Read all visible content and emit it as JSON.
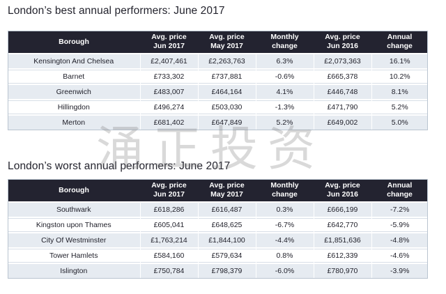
{
  "tables": [
    {
      "title": "London’s best annual performers: June 2017",
      "headers": {
        "borough": "Borough",
        "avg_jun2017": [
          "Avg. price",
          "Jun 2017"
        ],
        "avg_may2017": [
          "Avg. price",
          "May 2017"
        ],
        "monthly": [
          "Monthly",
          "change"
        ],
        "avg_jun2016": [
          "Avg. price",
          "Jun 2016"
        ],
        "annual": [
          "Annual",
          "change"
        ]
      },
      "rows": [
        [
          "Kensington And Chelsea",
          "£2,407,461",
          "£2,263,763",
          "6.3%",
          "£2,073,363",
          "16.1%"
        ],
        [
          "Barnet",
          "£733,302",
          "£737,881",
          "-0.6%",
          "£665,378",
          "10.2%"
        ],
        [
          "Greenwich",
          "£483,007",
          "£464,164",
          "4.1%",
          "£446,748",
          "8.1%"
        ],
        [
          "Hillingdon",
          "£496,274",
          "£503,030",
          "-1.3%",
          "£471,790",
          "5.2%"
        ],
        [
          "Merton",
          "£681,402",
          "£647,849",
          "5.2%",
          "£649,002",
          "5.0%"
        ]
      ]
    },
    {
      "title": "London’s worst annual performers: June 2017",
      "headers": {
        "borough": "Borough",
        "avg_jun2017": [
          "Avg. price",
          "Jun 2017"
        ],
        "avg_may2017": [
          "Avg. price",
          "May 2017"
        ],
        "monthly": [
          "Monthly",
          "change"
        ],
        "avg_jun2016": [
          "Avg. price",
          "Jun 2016"
        ],
        "annual": [
          "Annual",
          "change"
        ]
      },
      "rows": [
        [
          "Southwark",
          "£618,286",
          "£616,487",
          "0.3%",
          "£666,199",
          "-7.2%"
        ],
        [
          "Kingston upon Thames",
          "£605,041",
          "£648,625",
          "-6.7%",
          "£642,770",
          "-5.9%"
        ],
        [
          "City Of Westminster",
          "£1,763,214",
          "£1,844,100",
          "-4.4%",
          "£1,851,636",
          "-4.8%"
        ],
        [
          "Tower Hamlets",
          "£584,160",
          "£579,634",
          "0.8%",
          "£612,339",
          "-4.6%"
        ],
        [
          "Islington",
          "£750,784",
          "£798,379",
          "-6.0%",
          "£780,970",
          "-3.9%"
        ]
      ]
    }
  ],
  "watermark": "涌正投资",
  "colors": {
    "header_bg": "#232330",
    "header_text": "#ffffff",
    "row_alt_bg": "#e6ebf1",
    "title_text": "#23232d"
  }
}
